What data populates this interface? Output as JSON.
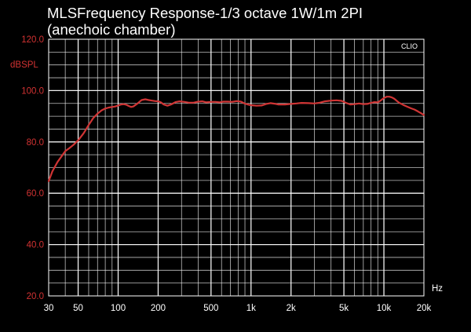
{
  "chart_data": {
    "type": "line",
    "title": "MLSFrequency Response-1/3 octave 1W/1m 2PI",
    "subtitle": "(anechoic chamber)",
    "watermark": "CLIO",
    "xlabel": "Hz",
    "ylabel": "dBSPL",
    "x_scale": "log",
    "xlim": [
      30,
      20000
    ],
    "ylim": [
      20,
      120
    ],
    "grid": true,
    "y_ticks": [
      {
        "value": 20,
        "label": "20.0"
      },
      {
        "value": 40,
        "label": "40.0"
      },
      {
        "value": 60,
        "label": "60.0"
      },
      {
        "value": 80,
        "label": "80.0"
      },
      {
        "value": 100,
        "label": "100.0"
      },
      {
        "value": 120,
        "label": "120.0"
      }
    ],
    "x_ticks": [
      {
        "value": 30,
        "label": "30"
      },
      {
        "value": 50,
        "label": "50"
      },
      {
        "value": 100,
        "label": "100"
      },
      {
        "value": 200,
        "label": "200"
      },
      {
        "value": 500,
        "label": "500"
      },
      {
        "value": 1000,
        "label": "1k"
      },
      {
        "value": 2000,
        "label": "2k"
      },
      {
        "value": 5000,
        "label": "5k"
      },
      {
        "value": 10000,
        "label": "10k"
      },
      {
        "value": 20000,
        "label": "20k"
      }
    ],
    "y_minor_step": 5,
    "colors": {
      "background": "#000000",
      "frame": "#ffffff",
      "grid": "#ffffff",
      "axis_text": "#d23232",
      "curve": "#d03535",
      "title": "#ffffff"
    },
    "series": [
      {
        "x": [
          30,
          32,
          35,
          38,
          40,
          43,
          46,
          50,
          55,
          60,
          65,
          70,
          75,
          80,
          85,
          90,
          95,
          100,
          105,
          110,
          115,
          120,
          125,
          130,
          140,
          150,
          160,
          170,
          180,
          190,
          200,
          210,
          220,
          235,
          250,
          270,
          290,
          315,
          340,
          370,
          400,
          430,
          460,
          500,
          540,
          580,
          620,
          670,
          720,
          780,
          840,
          900,
          960,
          1000,
          1100,
          1200,
          1300,
          1400,
          1500,
          1600,
          1800,
          2000,
          2200,
          2400,
          2700,
          3000,
          3300,
          3600,
          4000,
          4400,
          4800,
          5200,
          5600,
          6000,
          6500,
          7000,
          7500,
          8000,
          8500,
          9000,
          9500,
          10000,
          10500,
          11000,
          11500,
          12000,
          12500,
          13000,
          14000,
          15000,
          16000,
          17000,
          18000,
          19000,
          20000
        ],
        "values": [
          64.7,
          68.5,
          72.2,
          74.8,
          76.4,
          77.6,
          78.8,
          80.6,
          83.4,
          86.6,
          89.3,
          91.0,
          92.3,
          93.0,
          93.4,
          93.6,
          93.8,
          94.2,
          94.6,
          94.7,
          94.5,
          94.0,
          93.6,
          93.8,
          95.0,
          96.3,
          96.6,
          96.3,
          96.1,
          95.9,
          95.8,
          95.4,
          94.6,
          94.1,
          94.6,
          95.5,
          95.8,
          95.6,
          95.3,
          95.3,
          95.7,
          95.8,
          95.4,
          95.6,
          95.6,
          95.4,
          95.7,
          95.7,
          95.6,
          95.9,
          95.7,
          94.9,
          94.5,
          94.3,
          94.1,
          94.2,
          94.8,
          95.1,
          94.9,
          94.6,
          94.6,
          94.8,
          95.0,
          95.2,
          95.1,
          95.0,
          95.3,
          95.8,
          96.1,
          96.2,
          96.0,
          95.2,
          94.6,
          94.7,
          95.0,
          94.7,
          94.8,
          95.2,
          95.5,
          95.4,
          96.2,
          97.1,
          97.6,
          97.6,
          97.3,
          96.8,
          96.0,
          95.3,
          94.4,
          93.7,
          93.1,
          92.6,
          91.9,
          91.2,
          90.5
        ]
      }
    ]
  }
}
